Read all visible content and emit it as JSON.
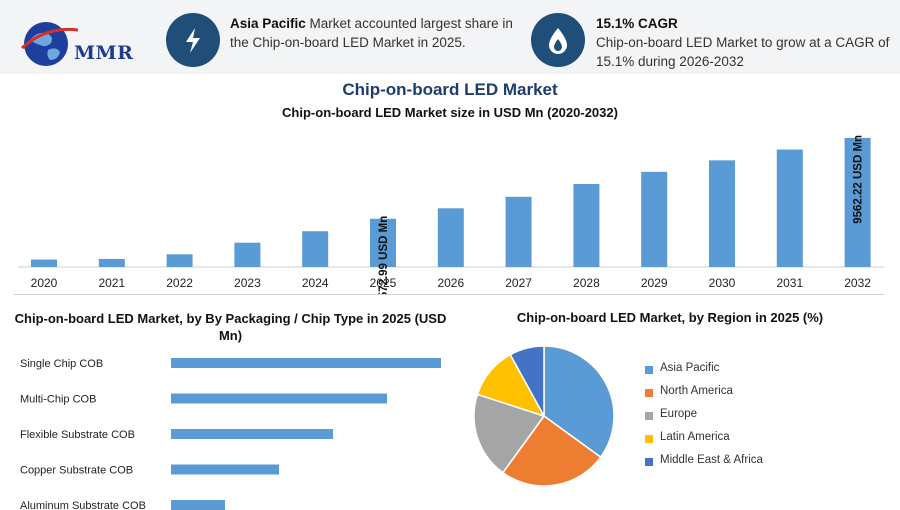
{
  "header": {
    "logo_text": "MMR",
    "card1": {
      "icon": "lightning-icon",
      "bold": "Asia Pacific",
      "text": " Market accounted largest share in the Chip-on-board LED Market in 2025."
    },
    "card2": {
      "icon": "flame-drop-icon",
      "bold": "15.1% CAGR",
      "text": "Chip-on-board LED Market to grow at a CAGR of 15.1% during 2026-2032"
    }
  },
  "titles": {
    "main": "Chip-on-board LED Market",
    "sub": "Chip-on-board LED Market size in USD Mn (2020-2032)",
    "left": "Chip-on-board LED Market, by By Packaging / Chip Type in 2025 (USD Mn)",
    "right": "Chip-on-board LED Market, by Region in 2025 (%)"
  },
  "chart_data": [
    {
      "type": "bar",
      "title": "Chip-on-board LED Market size in USD Mn (2020-2032)",
      "categories": [
        "2020",
        "2021",
        "2022",
        "2023",
        "2024",
        "2025",
        "2026",
        "2027",
        "2028",
        "2029",
        "2030",
        "2031",
        "2032"
      ],
      "values": [
        550,
        600,
        940,
        1800,
        2650,
        3572.99,
        4350,
        5200,
        6150,
        7050,
        7900,
        8700,
        9562.22
      ],
      "data_labels": {
        "2025": "3572.99 USD Mn",
        "2032": "9562.22 USD Mn"
      },
      "ylim": [
        0,
        10000
      ],
      "color": "#5b9bd5"
    },
    {
      "type": "bar",
      "orientation": "horizontal",
      "title": "Chip-on-board LED Market, by By Packaging / Chip Type in 2025 (USD Mn)",
      "categories": [
        "Single Chip COB",
        "Multi-Chip COB",
        "Flexible Substrate COB",
        "Copper Substrate COB",
        "Aluminum Substrate COB"
      ],
      "values": [
        100,
        80,
        60,
        40,
        20
      ],
      "color": "#5b9bd5"
    },
    {
      "type": "pie",
      "title": "Chip-on-board LED Market, by Region in 2025 (%)",
      "labels": [
        "Asia Pacific",
        "North America",
        "Europe",
        "Latin America",
        "Middle East & Africa"
      ],
      "values": [
        35,
        25,
        20,
        12,
        8
      ],
      "colors": [
        "#5b9bd5",
        "#ed7d31",
        "#a5a5a5",
        "#ffc000",
        "#4472c4"
      ],
      "legend": "right"
    }
  ]
}
